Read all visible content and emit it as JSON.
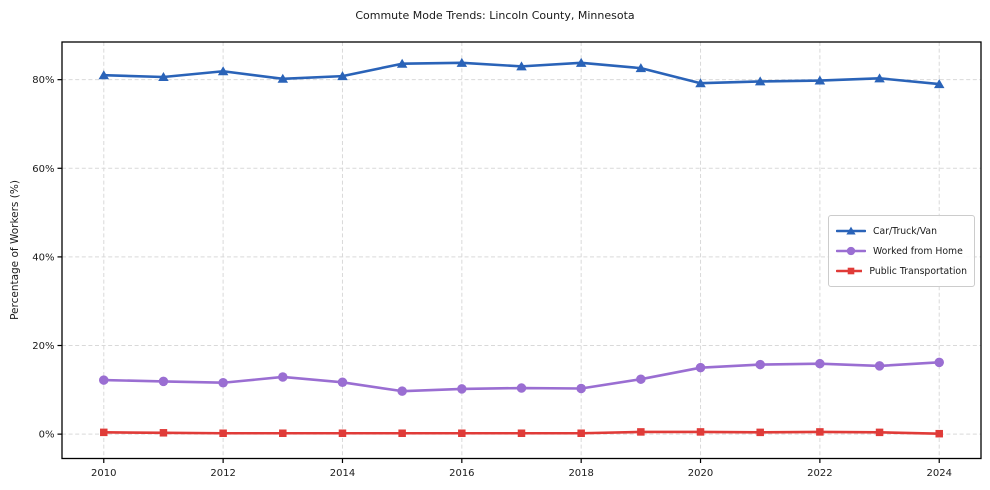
{
  "title": "Commute Mode Trends: Lincoln County, Minnesota",
  "chart_data": {
    "type": "line",
    "x": [
      2010,
      2011,
      2012,
      2013,
      2014,
      2015,
      2016,
      2017,
      2018,
      2019,
      2020,
      2021,
      2022,
      2023,
      2024
    ],
    "series": [
      {
        "name": "Car/Truck/Van",
        "color": "#2a63b8",
        "marker": "triangle",
        "values": [
          81.0,
          80.6,
          81.9,
          80.2,
          80.8,
          83.6,
          83.8,
          83.0,
          83.8,
          82.6,
          79.2,
          79.6,
          79.8,
          80.3,
          79.0
        ]
      },
      {
        "name": "Worked from Home",
        "color": "#9a6ed2",
        "marker": "circle",
        "values": [
          12.2,
          11.9,
          11.6,
          12.9,
          11.7,
          9.7,
          10.2,
          10.4,
          10.3,
          12.4,
          15.0,
          15.7,
          15.9,
          15.4,
          16.2
        ]
      },
      {
        "name": "Public Transportation",
        "color": "#e03b38",
        "marker": "square",
        "values": [
          0.4,
          0.3,
          0.2,
          0.2,
          0.2,
          0.2,
          0.2,
          0.2,
          0.2,
          0.5,
          0.5,
          0.4,
          0.5,
          0.4,
          0.1
        ]
      }
    ],
    "xlabel": "",
    "ylabel": "Percentage of Workers (%)",
    "y_ticks": [
      0,
      20,
      40,
      60,
      80
    ],
    "y_tick_suffix": "%",
    "x_ticks": [
      2010,
      2012,
      2014,
      2016,
      2018,
      2020,
      2022,
      2024
    ],
    "xlim": [
      2009.3,
      2024.7
    ],
    "ylim": [
      -5.5,
      88.5
    ],
    "grid": true,
    "grid_color": "#d9d9d9",
    "spine_color": "#000000",
    "text_color": "#1a1a1a",
    "legend_position": "center right"
  }
}
